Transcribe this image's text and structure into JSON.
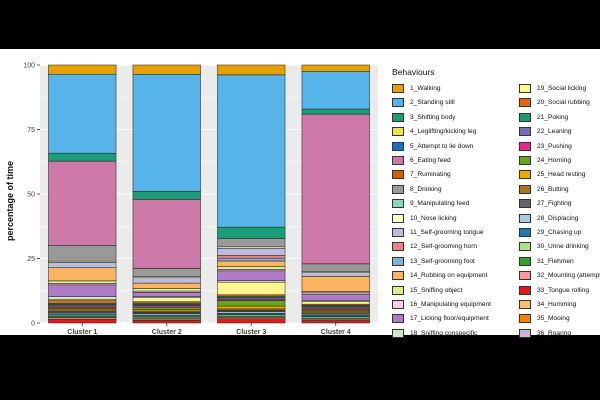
{
  "chart_data": {
    "type": "bar",
    "stacked": true,
    "ylabel": "percentage of time",
    "xlabel": "",
    "ylim": [
      0,
      100
    ],
    "yticks": [
      "0",
      "25",
      "50",
      "75",
      "100"
    ],
    "categories": [
      "Cluster 1",
      "Cluster 2",
      "Cluster 3",
      "Cluster 4"
    ],
    "legend_title": "Behaviours",
    "series": [
      {
        "name": "1_Walking",
        "color": "#E5A002",
        "values": [
          3.5,
          3.5,
          3.5,
          2.5
        ]
      },
      {
        "name": "2_Standing still",
        "color": "#56B4E9",
        "values": [
          30,
          44,
          54,
          15
        ]
      },
      {
        "name": "3_Shifting body",
        "color": "#1B9E77",
        "values": [
          3,
          3,
          4,
          2
        ]
      },
      {
        "name": "4_Leglifting/kicking leg",
        "color": "#F0E442",
        "values": [
          0,
          0,
          0,
          0
        ]
      },
      {
        "name": "5_Attempt to lie down",
        "color": "#1A6FB5",
        "values": [
          0,
          0,
          0,
          0
        ]
      },
      {
        "name": "6_Eating feed",
        "color": "#CC79A7",
        "values": [
          32,
          26,
          0,
          59.5
        ]
      },
      {
        "name": "7_Ruminating",
        "color": "#D55E00",
        "values": [
          0,
          0,
          0,
          0
        ]
      },
      {
        "name": "8_Drinking",
        "color": "#999999",
        "values": [
          6,
          3,
          3,
          3
        ]
      },
      {
        "name": "9_Manipulating feed",
        "color": "#8FD3C2",
        "values": [
          0,
          0,
          0,
          0
        ]
      },
      {
        "name": "10_Nose licking",
        "color": "#FFFFCC",
        "values": [
          0.5,
          0.5,
          0.5,
          0.5
        ]
      },
      {
        "name": "11_Self-grooming tongue",
        "color": "#BCBDDC",
        "values": [
          2,
          2,
          2.5,
          1.5
        ]
      },
      {
        "name": "12_Self-grooming horn",
        "color": "#F08080",
        "values": [
          0,
          0,
          1,
          0
        ]
      },
      {
        "name": "13_Self-grooming foot",
        "color": "#80B1D3",
        "values": [
          0,
          0,
          1,
          0
        ]
      },
      {
        "name": "14_Rubbing on equipment",
        "color": "#FDB462",
        "values": [
          5,
          2,
          2,
          6
        ]
      },
      {
        "name": "15_Sniffing object",
        "color": "#D9EF8B",
        "values": [
          1,
          1,
          1,
          0.5
        ]
      },
      {
        "name": "16_Manipulating equipment",
        "color": "#FCCDE5",
        "values": [
          0.5,
          0.5,
          0.5,
          0.5
        ]
      },
      {
        "name": "17_Licking floor/equipment",
        "color": "#B07AC7",
        "values": [
          4.5,
          1.5,
          3.5,
          2.5
        ]
      },
      {
        "name": "18_Sniffing conspecific",
        "color": "#CCEBC5",
        "values": [
          1,
          0.5,
          0.5,
          0.5
        ]
      },
      {
        "name": "19_Social licking",
        "color": "#FFF68F",
        "values": [
          0.5,
          1.5,
          4.5,
          1
        ]
      },
      {
        "name": "20_Social rubbing",
        "color": "#E7650B",
        "values": [
          1,
          0.5,
          0.5,
          0.5
        ]
      },
      {
        "name": "21_Poking",
        "color": "#1F9A6F",
        "values": [
          0.5,
          0.5,
          0.5,
          0.5
        ]
      },
      {
        "name": "22_Leaning",
        "color": "#7570B3",
        "values": [
          0.5,
          0.5,
          0.5,
          0.5
        ]
      },
      {
        "name": "23_Pushing",
        "color": "#E7298A",
        "values": [
          0.5,
          0.5,
          0.5,
          0.5
        ]
      },
      {
        "name": "24_Horning",
        "color": "#66A61E",
        "values": [
          0.5,
          1,
          2,
          0.5
        ]
      },
      {
        "name": "25_Head resting",
        "color": "#E6AB02",
        "values": [
          0.5,
          0.5,
          1,
          0.5
        ]
      },
      {
        "name": "26_Butting",
        "color": "#A6761D",
        "values": [
          0.5,
          0.5,
          0.5,
          0.5
        ]
      },
      {
        "name": "27_Fighting",
        "color": "#666666",
        "values": [
          0.5,
          0.5,
          0.5,
          0.5
        ]
      },
      {
        "name": "28_Displacing",
        "color": "#A6CEE3",
        "values": [
          0.5,
          0.5,
          0.5,
          0.5
        ]
      },
      {
        "name": "29_Chasing up",
        "color": "#1F78B4",
        "values": [
          0.5,
          0.5,
          0.5,
          0.5
        ]
      },
      {
        "name": "30_Urine drinking",
        "color": "#B2DF8A",
        "values": [
          0.5,
          0.5,
          0.5,
          0.5
        ]
      },
      {
        "name": "31_Flehmen",
        "color": "#33A02C",
        "values": [
          0.5,
          0.5,
          0.5,
          0.5
        ]
      },
      {
        "name": "32_Mounting (attempt)",
        "color": "#FB9A99",
        "values": [
          0.5,
          0.5,
          0.5,
          0.5
        ]
      },
      {
        "name": "33_Tongue rolling",
        "color": "#E31A1C",
        "values": [
          1.5,
          1,
          1.5,
          1
        ]
      },
      {
        "name": "34_Humming",
        "color": "#FDBF6F",
        "values": [
          0,
          0,
          0,
          0
        ]
      },
      {
        "name": "35_Mooing",
        "color": "#FF7F00",
        "values": [
          0,
          0,
          0,
          0
        ]
      },
      {
        "name": "36_Roaring",
        "color": "#CAB2D6",
        "values": [
          0,
          0,
          0,
          0
        ]
      }
    ]
  }
}
